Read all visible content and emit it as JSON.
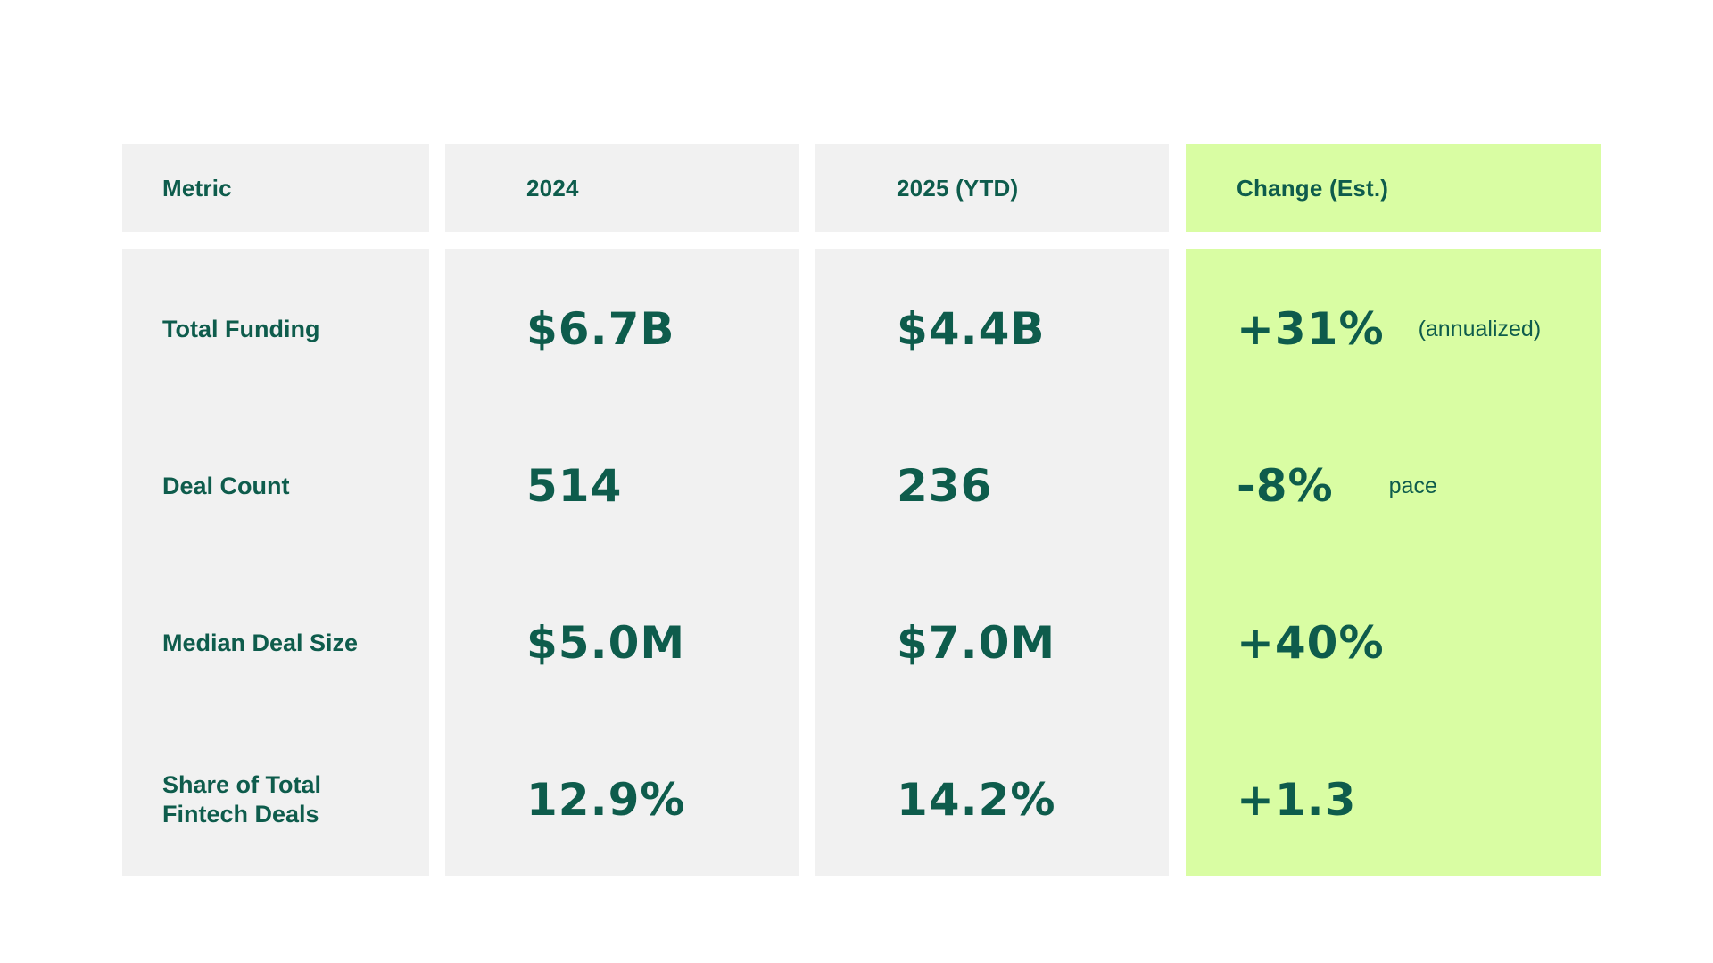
{
  "table": {
    "headers": {
      "metric": "Metric",
      "y2024": "2024",
      "y2025": "2025 (YTD)",
      "change": "Change (Est.)"
    },
    "rows": [
      {
        "metric": "Total Funding",
        "y2024": "$6.7B",
        "y2025": "$4.4B",
        "change": "+31%",
        "note": "(annualized)"
      },
      {
        "metric": "Deal Count",
        "y2024": "514",
        "y2025": "236",
        "change": "-8%",
        "note": "pace"
      },
      {
        "metric": "Median Deal Size",
        "y2024": "$5.0M",
        "y2025": "$7.0M",
        "change": "+40%",
        "note": ""
      },
      {
        "metric": "Share of Total Fintech Deals",
        "y2024": "12.9%",
        "y2025": "14.2%",
        "change": "+1.3",
        "note": ""
      }
    ]
  },
  "colors": {
    "text": "#0e5c4c",
    "cell_bg": "#f1f1f1",
    "highlight_bg": "#d9fda3"
  },
  "chart_data": {
    "type": "table",
    "columns": [
      "Metric",
      "2024",
      "2025 (YTD)",
      "Change (Est.)"
    ],
    "rows": [
      [
        "Total Funding",
        "$6.7B",
        "$4.4B",
        "+31% (annualized)"
      ],
      [
        "Deal Count",
        "514",
        "236",
        "-8% pace"
      ],
      [
        "Median Deal Size",
        "$5.0M",
        "$7.0M",
        "+40%"
      ],
      [
        "Share of Total Fintech Deals",
        "12.9%",
        "14.2%",
        "+1.3"
      ]
    ]
  }
}
